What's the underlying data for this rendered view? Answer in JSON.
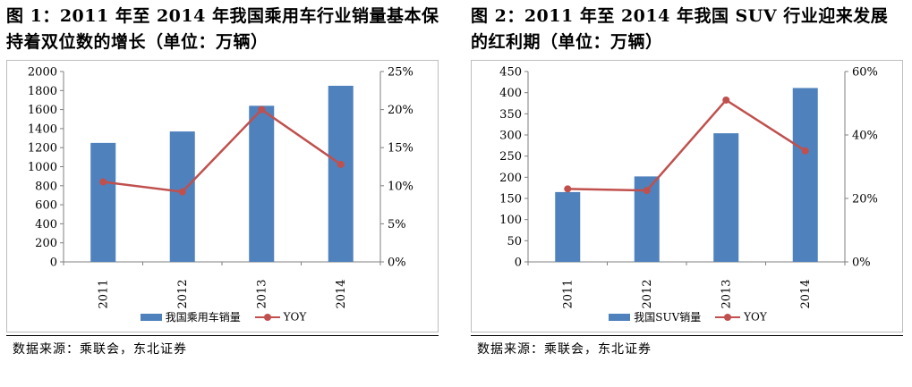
{
  "colors": {
    "bar": "#4f81bd",
    "line": "#c0504d",
    "axis": "#7f7f7f"
  },
  "charts": [
    {
      "title": "图 1：2011 年至 2014 年我国乘用车行业销量基本保持着双位数的增长（单位：万辆）",
      "source": "数据来源：乘联会，东北证券",
      "chart_data": {
        "type": "bar",
        "categories": [
          "2011",
          "2012",
          "2013",
          "2014"
        ],
        "series": [
          {
            "name": "我国乘用车销量",
            "type": "bar",
            "axis": "left",
            "values": [
              1250,
              1370,
              1640,
              1850
            ]
          },
          {
            "name": "YOY",
            "type": "line",
            "axis": "right",
            "values": [
              0.105,
              0.092,
              0.2,
              0.128
            ]
          }
        ],
        "y_left": {
          "min": 0,
          "max": 2000,
          "step": 200,
          "ticks": [
            "0",
            "200",
            "400",
            "600",
            "800",
            "1000",
            "1200",
            "1400",
            "1600",
            "1800",
            "2000"
          ]
        },
        "y_right": {
          "min": 0,
          "max": 0.25,
          "step": 0.05,
          "ticks": [
            "0%",
            "5%",
            "10%",
            "15%",
            "20%",
            "25%"
          ]
        },
        "legend": "bottom",
        "grid": false
      }
    },
    {
      "title": "图 2：2011 年至 2014 年我国 SUV 行业迎来发展的红利期（单位：万辆）",
      "source": "数据来源：乘联会，东北证券",
      "chart_data": {
        "type": "bar",
        "categories": [
          "2011",
          "2012",
          "2013",
          "2014"
        ],
        "series": [
          {
            "name": "我国SUV销量",
            "type": "bar",
            "axis": "left",
            "values": [
              165,
              202,
              304,
              411
            ]
          },
          {
            "name": "YOY",
            "type": "line",
            "axis": "right",
            "values": [
              0.23,
              0.225,
              0.51,
              0.35
            ]
          }
        ],
        "y_left": {
          "min": 0,
          "max": 450,
          "step": 50,
          "ticks": [
            "0",
            "50",
            "100",
            "150",
            "200",
            "250",
            "300",
            "350",
            "400",
            "450"
          ]
        },
        "y_right": {
          "min": 0,
          "max": 0.6,
          "step": 0.2,
          "ticks": [
            "0%",
            "20%",
            "40%",
            "60%"
          ]
        },
        "legend": "bottom",
        "grid": false
      }
    }
  ]
}
